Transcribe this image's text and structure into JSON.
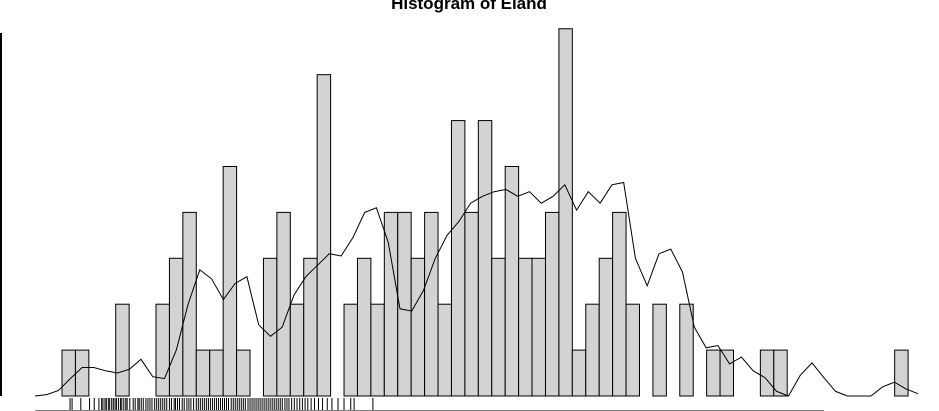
{
  "chart_data": {
    "type": "bar",
    "title": "Histogram of Eland",
    "xlabel": "",
    "ylabel": "",
    "bar_fill": "#d3d3d3",
    "bar_stroke": "#000000",
    "values": [
      1,
      1,
      0,
      0,
      2,
      0,
      0,
      2,
      3,
      4,
      1,
      1,
      5,
      1,
      0,
      3,
      4,
      2,
      3,
      7,
      0,
      2,
      3,
      2,
      4,
      4,
      3,
      4,
      2,
      6,
      4,
      6,
      3,
      5,
      3,
      3,
      4,
      8,
      1,
      2,
      3,
      4,
      2,
      0,
      2,
      0,
      2,
      0,
      1,
      1,
      0,
      0,
      1,
      1,
      0,
      0,
      0,
      0,
      0,
      0,
      0,
      0,
      1
    ],
    "ylim": [
      0,
      8.3
    ],
    "density": [
      0.0,
      0.03,
      0.12,
      0.38,
      0.62,
      0.62,
      0.55,
      0.5,
      0.58,
      0.8,
      0.42,
      0.38,
      1.0,
      2.0,
      2.75,
      2.55,
      2.1,
      2.45,
      2.6,
      1.55,
      1.3,
      1.5,
      2.2,
      2.6,
      2.85,
      3.1,
      3.05,
      3.45,
      4.0,
      4.1,
      3.35,
      1.9,
      1.85,
      2.3,
      3.0,
      3.5,
      3.8,
      4.2,
      4.35,
      4.45,
      4.5,
      4.35,
      4.45,
      4.2,
      4.35,
      4.6,
      4.05,
      4.45,
      4.2,
      4.6,
      4.65,
      3.0,
      2.4,
      3.1,
      3.2,
      2.7,
      1.5,
      1.05,
      1.1,
      0.7,
      0.85,
      0.55,
      0.4,
      0.1,
      0.0,
      0.45,
      0.72,
      0.4,
      0.1,
      0.0,
      0.0,
      0.0,
      0.2,
      0.3,
      0.15,
      0.05
    ],
    "rug": [
      0.6,
      0.75,
      1.4,
      2.05,
      2.4,
      2.75,
      2.95,
      3.05,
      3.2,
      3.3,
      3.45,
      3.55,
      3.7,
      3.82,
      3.95,
      4.05,
      4.2,
      4.35,
      4.45,
      4.6,
      4.75,
      4.85,
      5.05,
      5.3,
      5.45,
      5.65,
      5.75,
      5.9,
      6.05,
      6.25,
      6.4,
      6.55,
      6.7,
      6.9,
      7.05,
      7.2,
      7.35,
      7.5,
      7.65,
      7.8,
      8.0,
      8.15,
      8.35,
      8.45,
      8.6,
      8.75,
      8.95,
      9.1,
      9.3,
      9.45,
      9.6,
      9.8,
      10.0,
      10.15,
      10.3,
      10.45,
      10.6,
      10.75,
      10.9,
      11.05,
      11.2,
      11.35,
      11.5,
      11.65,
      11.8,
      11.95,
      12.1,
      12.25,
      12.4,
      12.6,
      12.75,
      12.9,
      13.05,
      13.2,
      13.35,
      13.5,
      13.65,
      13.85,
      14.0,
      14.15,
      14.3,
      14.45,
      14.6,
      14.75,
      14.9,
      15.05,
      15.2,
      15.35,
      15.5,
      15.65,
      15.8,
      15.95,
      16.1,
      16.25,
      16.4,
      16.6,
      16.75,
      16.9,
      17.1,
      17.3,
      17.5,
      17.7,
      17.9,
      18.1,
      18.3,
      18.55,
      18.8,
      19.1,
      19.4,
      19.75,
      20.1,
      20.55,
      21.0,
      21.5,
      21.75,
      23.15
    ]
  }
}
